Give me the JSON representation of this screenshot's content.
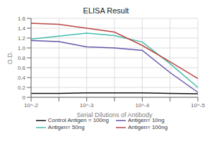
{
  "chart_data": {
    "type": "line",
    "title": "ELISA Result",
    "xlabel": "Serial Dilutions  of Antibody",
    "ylabel": "O.D.",
    "categories": [
      "10^-2",
      null,
      "10^-3",
      null,
      "10^-4",
      null,
      "10^-5"
    ],
    "ylim": [
      0,
      1.6
    ],
    "yticks": [
      0,
      0.2,
      0.4,
      0.6,
      0.8,
      {
        "value": 1.0,
        "label": "1.0"
      },
      1.2,
      1.4,
      1.6
    ],
    "grid": true,
    "legend": "bottom",
    "series": [
      {
        "name": "Control Antigen = 100ng",
        "color": "#111111",
        "values": [
          0.08,
          0.08,
          0.09,
          0.09,
          0.09,
          0.08,
          0.07
        ]
      },
      {
        "name": "Antigen= 10ng",
        "color": "#6655AA",
        "values": [
          1.15,
          1.13,
          1.02,
          1.0,
          0.95,
          0.5,
          0.1
        ]
      },
      {
        "name": "Antigen= 50ng",
        "color": "#44BBAA",
        "values": [
          1.18,
          1.24,
          1.3,
          1.25,
          1.12,
          0.68,
          0.2
        ]
      },
      {
        "name": "Antigen= 100ng",
        "color": "#BB4444",
        "values": [
          1.5,
          1.48,
          1.4,
          1.32,
          1.05,
          0.72,
          0.38
        ]
      }
    ]
  }
}
